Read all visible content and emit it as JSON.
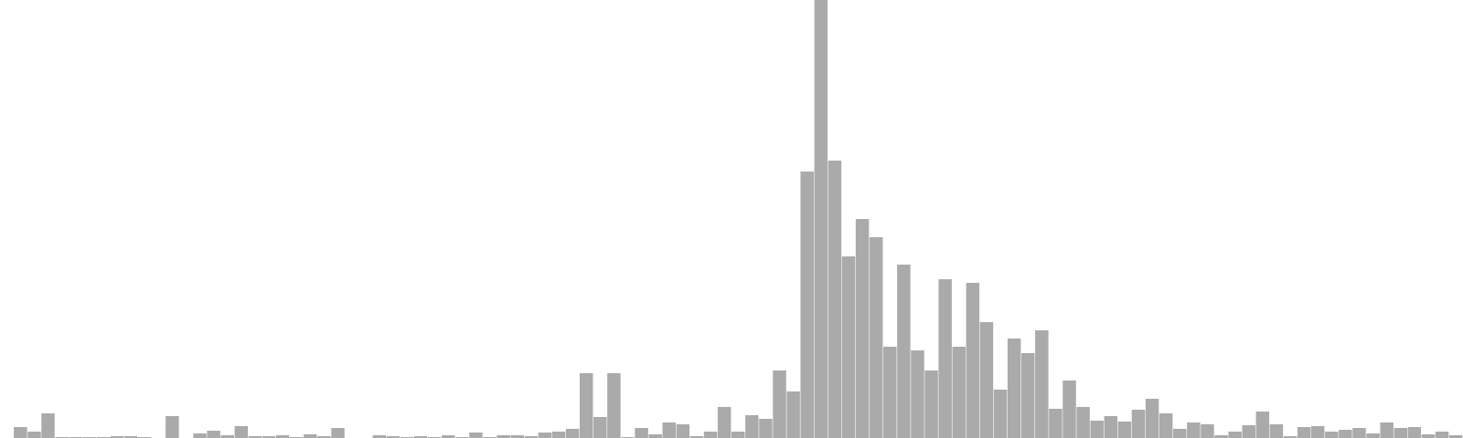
{
  "chart_data": {
    "type": "bar",
    "title": "",
    "xlabel": "",
    "ylabel": "",
    "grid": false,
    "ylim": [
      0,
      480
    ],
    "bar_color": "#aaaaaa",
    "values": [
      0,
      12,
      7,
      27,
      1,
      1,
      1,
      1,
      2,
      2,
      1,
      0,
      24,
      0,
      5,
      8,
      3,
      13,
      2,
      2,
      3,
      1,
      4,
      2,
      11,
      0,
      0,
      3,
      2,
      1,
      2,
      1,
      3,
      1,
      6,
      1,
      3,
      3,
      2,
      6,
      7,
      10,
      71,
      23,
      71,
      1,
      11,
      4,
      17,
      15,
      2,
      7,
      34,
      7,
      25,
      21,
      74,
      51,
      292,
      480,
      304,
      199,
      240,
      220,
      100,
      190,
      96,
      74,
      174,
      100,
      170,
      127,
      53,
      109,
      93,
      118,
      32,
      63,
      34,
      19,
      24,
      18,
      31,
      43,
      27,
      10,
      17,
      15,
      3,
      7,
      14,
      29,
      15,
      2,
      12,
      13,
      7,
      9,
      11,
      5,
      17,
      11,
      12,
      4,
      7,
      3
    ]
  }
}
